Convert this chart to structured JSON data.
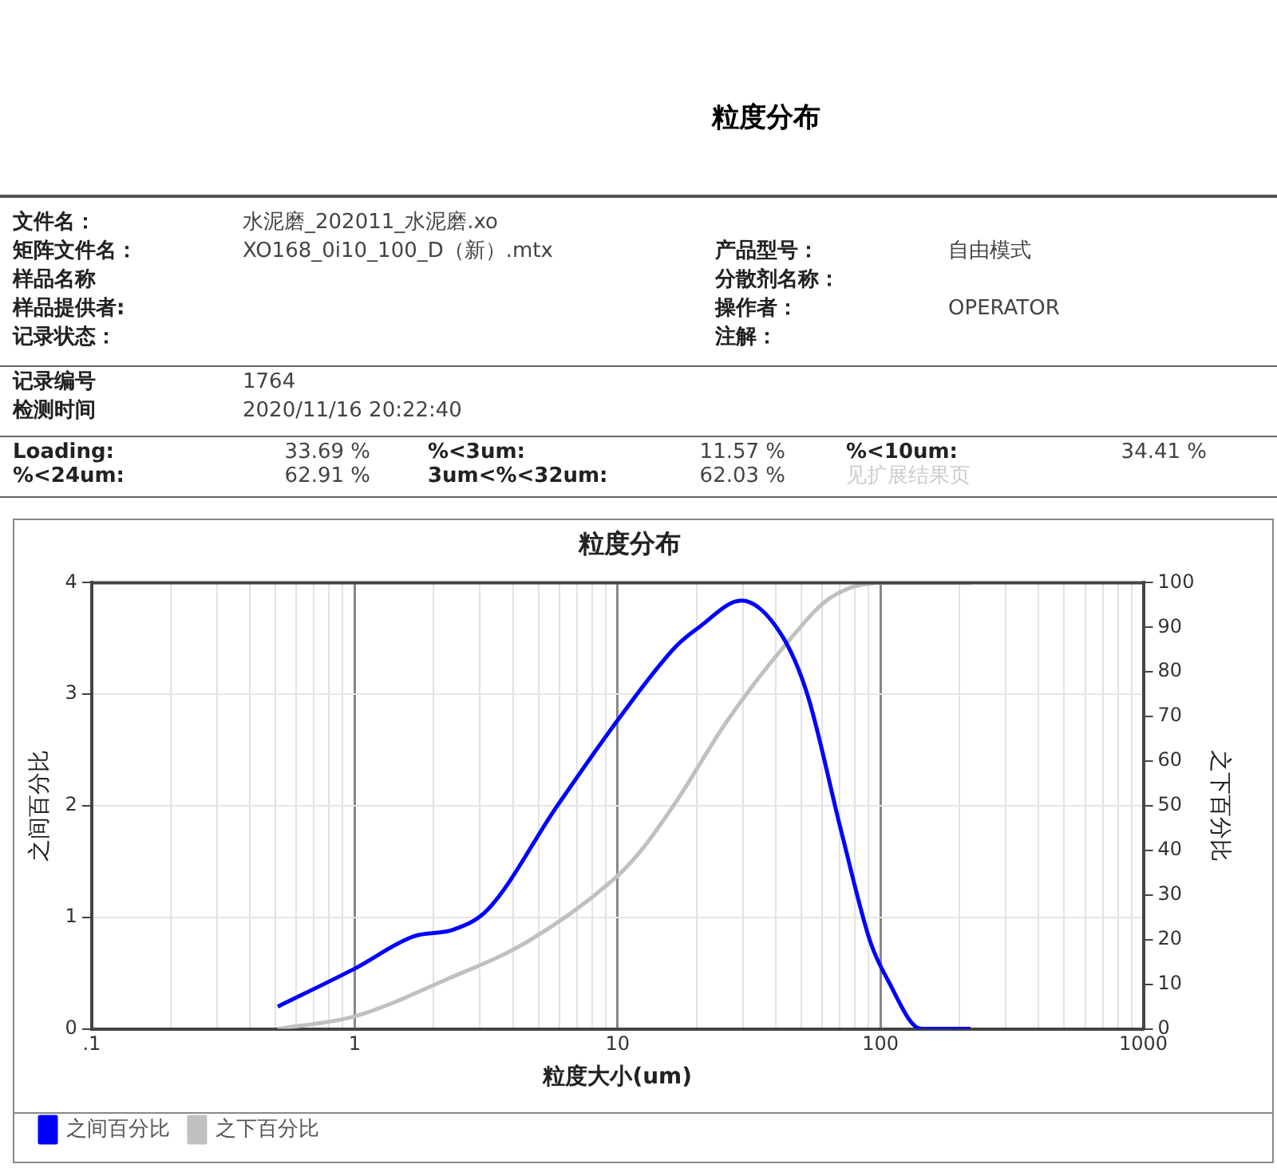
{
  "chart_data": {
    "type": "line",
    "subtitle": "粒度分布",
    "title": "粒度分布",
    "xlabel": "粒度大小(um)",
    "ylabel": "之间百分比",
    "y2label": "之下百分比",
    "annotations": [
      "文件名：",
      "水泥磨_202011_水泥磨.xo",
      "矩阵文件名：",
      "XO168_0i10_100_D（新）.mtx",
      "产品型号：",
      "自由模式",
      "样品名称",
      "分散剂名称：",
      "样品提供者:",
      "操作者：",
      "OPERATOR",
      "记录状态：",
      "注解：",
      "记录编号",
      "1764",
      "检测时间",
      "2020/11/16 20:22:40",
      "Loading:",
      "33.69 %",
      "%<3um:",
      "11.57 %",
      "%<10um:",
      "34.41 %",
      "%<24um:",
      "62.91 %",
      "3um<%<32um:",
      "62.03 %",
      "见扩展结果页"
    ],
    "log": "x",
    "grid": true,
    "legend": "bottom left",
    "marker": "none",
    "line_style": "solid",
    "xlim": [
      0.1,
      1000
    ],
    "xticks": [
      {
        "value": 0.1,
        "label": ".1"
      },
      {
        "value": 0.2,
        "label": null
      },
      {
        "value": 0.3,
        "label": null
      },
      {
        "value": 0.4,
        "label": null
      },
      {
        "value": 0.5,
        "label": null
      },
      {
        "value": 0.6,
        "label": null
      },
      {
        "value": 0.7,
        "label": null
      },
      {
        "value": 0.8,
        "label": null
      },
      {
        "value": 0.9,
        "label": null
      },
      1,
      {
        "value": 2,
        "label": null
      },
      {
        "value": 3,
        "label": null
      },
      {
        "value": 4,
        "label": null
      },
      {
        "value": 5,
        "label": null
      },
      {
        "value": 6,
        "label": null
      },
      {
        "value": 7,
        "label": null
      },
      {
        "value": 8,
        "label": null
      },
      {
        "value": 9,
        "label": null
      },
      10,
      {
        "value": 20,
        "label": null
      },
      {
        "value": 30,
        "label": null
      },
      {
        "value": 40,
        "label": null
      },
      {
        "value": 50,
        "label": null
      },
      {
        "value": 60,
        "label": null
      },
      {
        "value": 70,
        "label": null
      },
      {
        "value": 80,
        "label": null
      },
      {
        "value": 90,
        "label": null
      },
      100,
      {
        "value": 200,
        "label": null
      },
      {
        "value": 300,
        "label": null
      },
      {
        "value": 400,
        "label": null
      },
      {
        "value": 500,
        "label": null
      },
      {
        "value": 600,
        "label": null
      },
      {
        "value": 700,
        "label": null
      },
      {
        "value": 800,
        "label": null
      },
      {
        "value": 900,
        "label": null
      },
      1000
    ],
    "ylim": [
      0,
      4
    ],
    "yticks": [
      0,
      1,
      2,
      3,
      4
    ],
    "y2lim": [
      0,
      100
    ],
    "y2ticks": [
      0,
      10,
      20,
      30,
      40,
      50,
      60,
      70,
      80,
      90,
      100
    ],
    "series": [
      {
        "name": "之间百分比",
        "color": "#0000ff",
        "axis": "y",
        "x": [
          0.51,
          1.0,
          1.68,
          2.38,
          3.21,
          5.86,
          10.1,
          16.7,
          20.4,
          29.6,
          42.1,
          52.7,
          71.3,
          91.5,
          106,
          143,
          220
        ],
        "values": [
          0.2,
          0.54,
          0.83,
          0.89,
          1.07,
          1.99,
          2.78,
          3.43,
          3.6,
          3.84,
          3.53,
          3.0,
          1.75,
          0.78,
          0.45,
          0,
          0
        ]
      },
      {
        "name": "之下百分比",
        "color": "#c0c0c0",
        "axis": "y2",
        "x": [
          0.51,
          1.0,
          2.26,
          4.56,
          10,
          12.3,
          16.7,
          26.1,
          43.1,
          64.4,
          101,
          220
        ],
        "values": [
          0,
          2.8,
          11.2,
          19.6,
          34.3,
          40,
          50.9,
          69,
          85.8,
          96.6,
          100,
          100
        ]
      }
    ]
  }
}
